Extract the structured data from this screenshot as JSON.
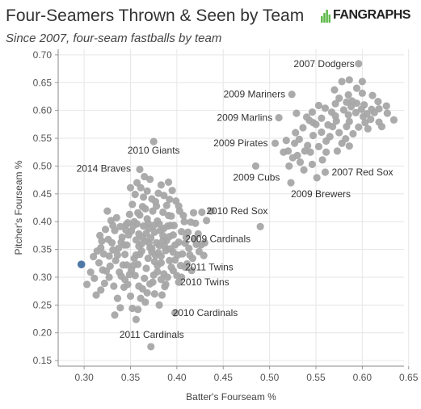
{
  "title": "Four-Seamers Thrown & Seen by Team",
  "subtitle": "Since 2007, four-seam fastballs by team",
  "logo_text": "FANGRAPHS",
  "colors": {
    "point": "#a6a6a6",
    "highlight": "#4e79a7",
    "grid": "#e6e6e6",
    "axis": "#555555",
    "logo_green": "#5fb94a"
  },
  "chart_data": {
    "type": "scatter",
    "title": "Four-Seamers Thrown & Seen by Team",
    "subtitle": "Since 2007, four-seam fastballs by team",
    "xlabel": "Batter's Fourseam %",
    "ylabel": "Pitcher's Fourseam %",
    "xlim": [
      0.272,
      0.645
    ],
    "ylim": [
      0.14,
      0.71
    ],
    "x_ticks": [
      0.3,
      0.35,
      0.4,
      0.45,
      0.5,
      0.55,
      0.6,
      0.65
    ],
    "x_tick_labels": [
      "0.30",
      "0.35",
      "0.40",
      "0.45",
      "0.50",
      "0.55",
      "0.60",
      "0.65"
    ],
    "y_ticks": [
      0.15,
      0.2,
      0.25,
      0.3,
      0.35,
      0.4,
      0.45,
      0.5,
      0.55,
      0.6,
      0.65,
      0.7
    ],
    "y_tick_labels": [
      "0.15",
      "0.20",
      "0.25",
      "0.30",
      "0.35",
      "0.40",
      "0.45",
      "0.50",
      "0.55",
      "0.60",
      "0.65",
      "0.70"
    ],
    "grid": true,
    "highlight_point": {
      "x": 0.297,
      "y": 0.323
    },
    "annotations": [
      {
        "label": "2007 Dodgers",
        "x": 0.596,
        "y": 0.684
      },
      {
        "label": "2009 Mariners",
        "x": 0.524,
        "y": 0.629
      },
      {
        "label": "2009 Marlins",
        "x": 0.51,
        "y": 0.587
      },
      {
        "label": "2009 Pirates",
        "x": 0.506,
        "y": 0.541
      },
      {
        "label": "2010 Giants",
        "x": 0.375,
        "y": 0.544
      },
      {
        "label": "2014 Braves",
        "x": 0.36,
        "y": 0.494
      },
      {
        "label": "2009 Cubs",
        "x": 0.485,
        "y": 0.5
      },
      {
        "label": "2007 Red Sox",
        "x": 0.56,
        "y": 0.489
      },
      {
        "label": "2009 Brewers",
        "x": 0.523,
        "y": 0.47
      },
      {
        "label": "2010 Red Sox",
        "x": 0.437,
        "y": 0.419
      },
      {
        "label": "2009 Cardinals",
        "x": 0.49,
        "y": 0.391
      },
      {
        "label": "2011 Twins",
        "x": 0.409,
        "y": 0.318
      },
      {
        "label": "2010 Twins",
        "x": 0.402,
        "y": 0.291
      },
      {
        "label": "2010 Cardinals",
        "x": 0.398,
        "y": 0.236
      },
      {
        "label": "2011 Cardinals",
        "x": 0.372,
        "y": 0.175
      }
    ],
    "points": [
      [
        0.596,
        0.684
      ],
      [
        0.524,
        0.629
      ],
      [
        0.51,
        0.587
      ],
      [
        0.506,
        0.541
      ],
      [
        0.375,
        0.544
      ],
      [
        0.36,
        0.494
      ],
      [
        0.485,
        0.5
      ],
      [
        0.56,
        0.489
      ],
      [
        0.523,
        0.47
      ],
      [
        0.437,
        0.419
      ],
      [
        0.49,
        0.391
      ],
      [
        0.409,
        0.318
      ],
      [
        0.402,
        0.291
      ],
      [
        0.398,
        0.236
      ],
      [
        0.372,
        0.175
      ],
      [
        0.578,
        0.652
      ],
      [
        0.586,
        0.655
      ],
      [
        0.6,
        0.652
      ],
      [
        0.57,
        0.637
      ],
      [
        0.594,
        0.64
      ],
      [
        0.585,
        0.628
      ],
      [
        0.575,
        0.622
      ],
      [
        0.6,
        0.631
      ],
      [
        0.611,
        0.627
      ],
      [
        0.617,
        0.616
      ],
      [
        0.626,
        0.608
      ],
      [
        0.61,
        0.602
      ],
      [
        0.602,
        0.61
      ],
      [
        0.594,
        0.613
      ],
      [
        0.588,
        0.607
      ],
      [
        0.58,
        0.601
      ],
      [
        0.571,
        0.612
      ],
      [
        0.567,
        0.597
      ],
      [
        0.56,
        0.604
      ],
      [
        0.553,
        0.609
      ],
      [
        0.546,
        0.597
      ],
      [
        0.54,
        0.588
      ],
      [
        0.547,
        0.578
      ],
      [
        0.556,
        0.586
      ],
      [
        0.563,
        0.574
      ],
      [
        0.572,
        0.581
      ],
      [
        0.585,
        0.592
      ],
      [
        0.593,
        0.596
      ],
      [
        0.601,
        0.589
      ],
      [
        0.609,
        0.584
      ],
      [
        0.618,
        0.579
      ],
      [
        0.627,
        0.595
      ],
      [
        0.634,
        0.583
      ],
      [
        0.621,
        0.571
      ],
      [
        0.606,
        0.567
      ],
      [
        0.596,
        0.57
      ],
      [
        0.59,
        0.558
      ],
      [
        0.583,
        0.571
      ],
      [
        0.575,
        0.56
      ],
      [
        0.565,
        0.553
      ],
      [
        0.556,
        0.561
      ],
      [
        0.547,
        0.555
      ],
      [
        0.536,
        0.569
      ],
      [
        0.528,
        0.56
      ],
      [
        0.532,
        0.548
      ],
      [
        0.541,
        0.537
      ],
      [
        0.527,
        0.541
      ],
      [
        0.518,
        0.546
      ],
      [
        0.52,
        0.527
      ],
      [
        0.53,
        0.519
      ],
      [
        0.544,
        0.525
      ],
      [
        0.553,
        0.535
      ],
      [
        0.561,
        0.525
      ],
      [
        0.573,
        0.527
      ],
      [
        0.586,
        0.536
      ],
      [
        0.578,
        0.541
      ],
      [
        0.557,
        0.511
      ],
      [
        0.546,
        0.503
      ],
      [
        0.533,
        0.507
      ],
      [
        0.525,
        0.515
      ],
      [
        0.521,
        0.5
      ],
      [
        0.537,
        0.493
      ],
      [
        0.551,
        0.479
      ],
      [
        0.515,
        0.525
      ],
      [
        0.613,
        0.596
      ],
      [
        0.618,
        0.603
      ],
      [
        0.603,
        0.578
      ],
      [
        0.586,
        0.58
      ],
      [
        0.568,
        0.571
      ],
      [
        0.561,
        0.545
      ],
      [
        0.582,
        0.549
      ],
      [
        0.599,
        0.602
      ],
      [
        0.605,
        0.594
      ],
      [
        0.589,
        0.617
      ],
      [
        0.583,
        0.615
      ],
      [
        0.571,
        0.59
      ],
      [
        0.55,
        0.575
      ],
      [
        0.529,
        0.595
      ],
      [
        0.543,
        0.582
      ],
      [
        0.538,
        0.527
      ],
      [
        0.297,
        0.323
      ],
      [
        0.303,
        0.287
      ],
      [
        0.307,
        0.309
      ],
      [
        0.311,
        0.298
      ],
      [
        0.31,
        0.337
      ],
      [
        0.316,
        0.326
      ],
      [
        0.318,
        0.353
      ],
      [
        0.317,
        0.375
      ],
      [
        0.32,
        0.313
      ],
      [
        0.322,
        0.289
      ],
      [
        0.324,
        0.311
      ],
      [
        0.327,
        0.338
      ],
      [
        0.33,
        0.362
      ],
      [
        0.333,
        0.384
      ],
      [
        0.329,
        0.402
      ],
      [
        0.325,
        0.419
      ],
      [
        0.332,
        0.284
      ],
      [
        0.336,
        0.262
      ],
      [
        0.333,
        0.232
      ],
      [
        0.339,
        0.245
      ],
      [
        0.343,
        0.282
      ],
      [
        0.34,
        0.302
      ],
      [
        0.342,
        0.322
      ],
      [
        0.344,
        0.341
      ],
      [
        0.346,
        0.358
      ],
      [
        0.348,
        0.376
      ],
      [
        0.345,
        0.394
      ],
      [
        0.349,
        0.413
      ],
      [
        0.352,
        0.431
      ],
      [
        0.355,
        0.449
      ],
      [
        0.35,
        0.461
      ],
      [
        0.357,
        0.47
      ],
      [
        0.361,
        0.461
      ],
      [
        0.364,
        0.444
      ],
      [
        0.366,
        0.423
      ],
      [
        0.368,
        0.405
      ],
      [
        0.37,
        0.388
      ],
      [
        0.372,
        0.371
      ],
      [
        0.371,
        0.353
      ],
      [
        0.369,
        0.334
      ],
      [
        0.367,
        0.316
      ],
      [
        0.365,
        0.298
      ],
      [
        0.363,
        0.279
      ],
      [
        0.361,
        0.262
      ],
      [
        0.358,
        0.242
      ],
      [
        0.356,
        0.224
      ],
      [
        0.352,
        0.244
      ],
      [
        0.35,
        0.266
      ],
      [
        0.347,
        0.287
      ],
      [
        0.355,
        0.303
      ],
      [
        0.358,
        0.323
      ],
      [
        0.36,
        0.341
      ],
      [
        0.362,
        0.36
      ],
      [
        0.359,
        0.378
      ],
      [
        0.357,
        0.396
      ],
      [
        0.36,
        0.412
      ],
      [
        0.374,
        0.419
      ],
      [
        0.377,
        0.436
      ],
      [
        0.38,
        0.451
      ],
      [
        0.383,
        0.466
      ],
      [
        0.386,
        0.447
      ],
      [
        0.389,
        0.429
      ],
      [
        0.391,
        0.411
      ],
      [
        0.393,
        0.393
      ],
      [
        0.396,
        0.376
      ],
      [
        0.398,
        0.358
      ],
      [
        0.401,
        0.34
      ],
      [
        0.404,
        0.321
      ],
      [
        0.4,
        0.303
      ],
      [
        0.396,
        0.312
      ],
      [
        0.392,
        0.33
      ],
      [
        0.388,
        0.348
      ],
      [
        0.385,
        0.366
      ],
      [
        0.382,
        0.384
      ],
      [
        0.379,
        0.401
      ],
      [
        0.376,
        0.381
      ],
      [
        0.378,
        0.362
      ],
      [
        0.38,
        0.344
      ],
      [
        0.383,
        0.326
      ],
      [
        0.386,
        0.306
      ],
      [
        0.388,
        0.287
      ],
      [
        0.384,
        0.268
      ],
      [
        0.381,
        0.25
      ],
      [
        0.376,
        0.27
      ],
      [
        0.374,
        0.291
      ],
      [
        0.406,
        0.342
      ],
      [
        0.409,
        0.361
      ],
      [
        0.412,
        0.381
      ],
      [
        0.415,
        0.399
      ],
      [
        0.418,
        0.416
      ],
      [
        0.42,
        0.397
      ],
      [
        0.423,
        0.378
      ],
      [
        0.426,
        0.358
      ],
      [
        0.429,
        0.339
      ],
      [
        0.432,
        0.402
      ],
      [
        0.427,
        0.417
      ],
      [
        0.421,
        0.359
      ],
      [
        0.414,
        0.34
      ],
      [
        0.408,
        0.4
      ],
      [
        0.403,
        0.419
      ],
      [
        0.399,
        0.437
      ],
      [
        0.395,
        0.456
      ],
      [
        0.391,
        0.471
      ],
      [
        0.371,
        0.476
      ],
      [
        0.365,
        0.481
      ],
      [
        0.353,
        0.392
      ],
      [
        0.347,
        0.398
      ],
      [
        0.341,
        0.372
      ],
      [
        0.337,
        0.352
      ],
      [
        0.334,
        0.33
      ],
      [
        0.328,
        0.32
      ],
      [
        0.321,
        0.342
      ],
      [
        0.319,
        0.365
      ],
      [
        0.314,
        0.347
      ],
      [
        0.338,
        0.309
      ],
      [
        0.344,
        0.296
      ],
      [
        0.351,
        0.313
      ],
      [
        0.354,
        0.334
      ],
      [
        0.362,
        0.347
      ],
      [
        0.367,
        0.365
      ],
      [
        0.373,
        0.352
      ],
      [
        0.377,
        0.339
      ],
      [
        0.381,
        0.357
      ],
      [
        0.385,
        0.375
      ],
      [
        0.39,
        0.392
      ],
      [
        0.394,
        0.41
      ],
      [
        0.397,
        0.393
      ],
      [
        0.392,
        0.373
      ],
      [
        0.387,
        0.355
      ],
      [
        0.383,
        0.338
      ],
      [
        0.379,
        0.321
      ],
      [
        0.375,
        0.304
      ],
      [
        0.371,
        0.288
      ],
      [
        0.368,
        0.272
      ],
      [
        0.366,
        0.255
      ],
      [
        0.359,
        0.284
      ],
      [
        0.356,
        0.367
      ],
      [
        0.351,
        0.383
      ],
      [
        0.345,
        0.385
      ],
      [
        0.34,
        0.363
      ],
      [
        0.336,
        0.34
      ],
      [
        0.331,
        0.349
      ],
      [
        0.326,
        0.368
      ],
      [
        0.323,
        0.386
      ],
      [
        0.396,
        0.345
      ],
      [
        0.402,
        0.363
      ],
      [
        0.405,
        0.382
      ],
      [
        0.41,
        0.372
      ],
      [
        0.413,
        0.352
      ],
      [
        0.417,
        0.334
      ],
      [
        0.419,
        0.368
      ],
      [
        0.407,
        0.411
      ],
      [
        0.402,
        0.428
      ],
      [
        0.392,
        0.44
      ],
      [
        0.385,
        0.417
      ],
      [
        0.378,
        0.428
      ],
      [
        0.373,
        0.441
      ],
      [
        0.368,
        0.455
      ],
      [
        0.363,
        0.427
      ],
      [
        0.358,
        0.416
      ],
      [
        0.354,
        0.4
      ],
      [
        0.364,
        0.392
      ],
      [
        0.369,
        0.397
      ],
      [
        0.375,
        0.393
      ],
      [
        0.381,
        0.396
      ],
      [
        0.386,
        0.388
      ],
      [
        0.389,
        0.366
      ],
      [
        0.393,
        0.351
      ],
      [
        0.398,
        0.331
      ],
      [
        0.394,
        0.318
      ],
      [
        0.39,
        0.3
      ],
      [
        0.387,
        0.283
      ],
      [
        0.383,
        0.296
      ],
      [
        0.379,
        0.31
      ],
      [
        0.376,
        0.328
      ],
      [
        0.373,
        0.345
      ],
      [
        0.37,
        0.362
      ],
      [
        0.367,
        0.379
      ],
      [
        0.363,
        0.372
      ],
      [
        0.359,
        0.356
      ],
      [
        0.356,
        0.34
      ],
      [
        0.353,
        0.321
      ],
      [
        0.349,
        0.305
      ],
      [
        0.346,
        0.322
      ],
      [
        0.343,
        0.358
      ],
      [
        0.339,
        0.391
      ],
      [
        0.335,
        0.407
      ],
      [
        0.331,
        0.393
      ],
      [
        0.327,
        0.3
      ],
      [
        0.318,
        0.277
      ],
      [
        0.313,
        0.268
      ],
      [
        0.405,
        0.3
      ],
      [
        0.411,
        0.324
      ],
      [
        0.416,
        0.312
      ],
      [
        0.424,
        0.346
      ],
      [
        0.43,
        0.362
      ]
    ]
  }
}
